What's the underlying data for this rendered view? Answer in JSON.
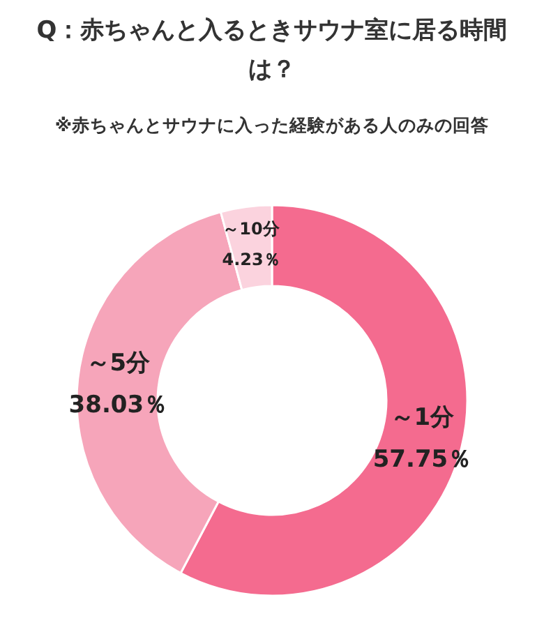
{
  "chart_data": {
    "type": "donut",
    "title": "Q：赤ちゃんと入るときサウナ室に居る時間は？",
    "subtitle": "※赤ちゃんとサウナに入った経験がある人のみの回答",
    "categories": [
      "～1分",
      "～5分",
      "～10分"
    ],
    "values": [
      57.75,
      38.03,
      4.23
    ],
    "colors": [
      "#f46b8f",
      "#f6a5ba",
      "#fbd3de"
    ],
    "value_labels": [
      "57.75％",
      "38.03％",
      "4.23％"
    ]
  }
}
